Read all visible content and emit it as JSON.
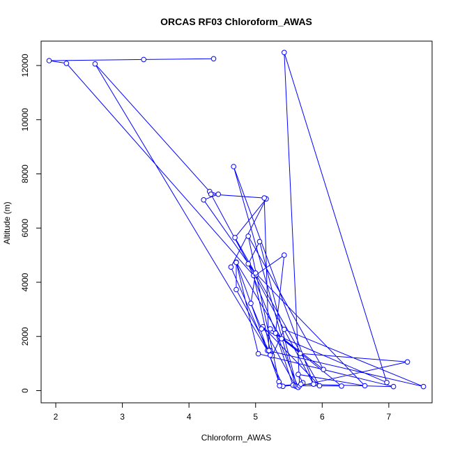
{
  "chart_data": {
    "type": "scatter",
    "title": "ORCAS RF03 Chloroform_AWAS",
    "xlabel": "Chloroform_AWAS",
    "ylabel": "Altitude (m)",
    "xlim": [
      1.78,
      7.65
    ],
    "ylim": [
      -450,
      12900
    ],
    "xticks": [
      2,
      3,
      4,
      5,
      6,
      7
    ],
    "yticks": [
      0,
      2000,
      4000,
      6000,
      8000,
      10000,
      12000
    ],
    "grid": false,
    "color": "#0000ff",
    "mode": "lines+markers",
    "x": [
      4.37,
      3.32,
      1.9,
      2.16,
      4.97,
      5.22,
      5.25,
      5.43,
      7.52,
      5.18,
      5.22,
      2.59,
      4.31,
      4.44,
      4.22,
      5.01,
      5.43,
      5.3,
      5.56,
      5.41,
      4.63,
      5.16,
      4.69,
      5.96,
      5.11,
      5.6,
      4.67,
      5.87,
      4.33,
      5.13,
      5.2,
      5.2,
      4.71,
      4.71,
      5.39,
      5.67,
      7.28,
      5.62,
      5.06,
      4.89,
      5.64,
      5.71,
      5.64,
      6.64,
      5.0,
      4.93,
      5.09,
      6.97,
      5.43,
      5.66,
      6.29,
      5.22,
      6.02,
      4.89,
      5.35,
      4.71,
      5.04,
      7.07,
      5.68,
      5.36
    ],
    "y": [
      12250,
      12220,
      12180,
      12080,
      4250,
      1480,
      1290,
      2260,
      150,
      1480,
      1310,
      12060,
      7350,
      7250,
      7040,
      4280,
      5000,
      2120,
      200,
      160,
      4560,
      7080,
      5650,
      180,
      2360,
      170,
      8270,
      240,
      7250,
      7110,
      1480,
      1480,
      3730,
      4740,
      1920,
      1370,
      1060,
      150,
      5500,
      4680,
      120,
      290,
      600,
      180,
      4340,
      3220,
      2280,
      300,
      12480,
      180,
      170,
      2280,
      780,
      5700,
      330,
      4730,
      1360,
      150,
      240,
      180
    ]
  }
}
